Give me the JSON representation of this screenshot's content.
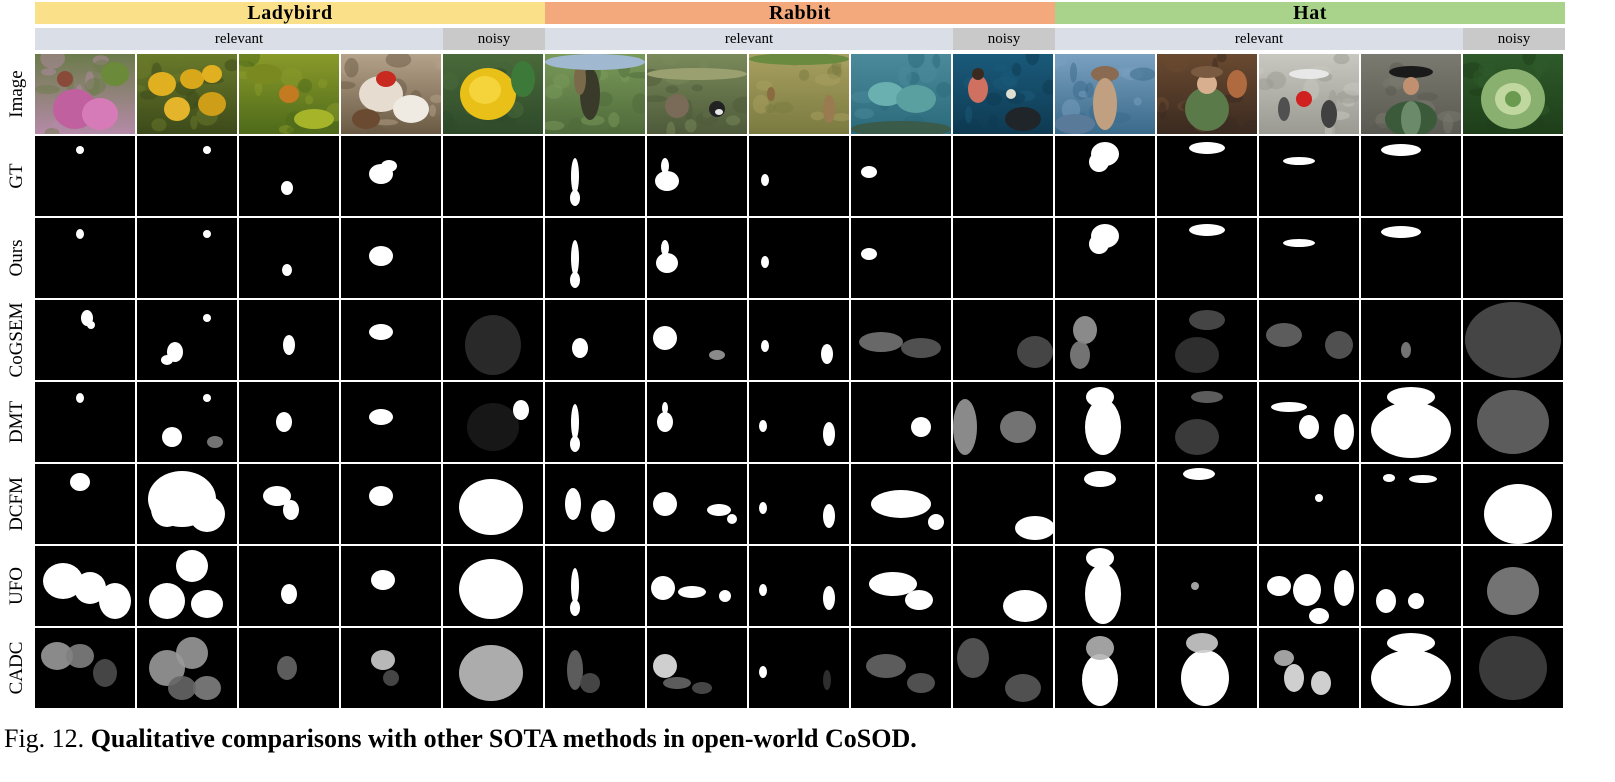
{
  "groups": [
    {
      "label": "Ladybird",
      "color": "#fbe08a"
    },
    {
      "label": "Rabbit",
      "color": "#f4a97c"
    },
    {
      "label": "Hat",
      "color": "#a9d38a"
    }
  ],
  "subheaders": {
    "relevant": "relevant",
    "noisy": "noisy"
  },
  "rows": [
    "Image",
    "GT",
    "Ours",
    "CoGSEM",
    "DMT",
    "DCFM",
    "UFO",
    "CADC"
  ],
  "columns": [
    {
      "group": "Ladybird",
      "type": "relevant",
      "depicts": "flower-ladybird"
    },
    {
      "group": "Ladybird",
      "type": "relevant",
      "depicts": "yellow-flowers-ladybird"
    },
    {
      "group": "Ladybird",
      "type": "relevant",
      "depicts": "ladybird-on-plant"
    },
    {
      "group": "Ladybird",
      "type": "relevant",
      "depicts": "thistle-ladybird"
    },
    {
      "group": "Ladybird",
      "type": "noisy",
      "depicts": "lemon"
    },
    {
      "group": "Rabbit",
      "type": "relevant",
      "depicts": "hunter-rabbit"
    },
    {
      "group": "Rabbit",
      "type": "relevant",
      "depicts": "rabbit-magpie"
    },
    {
      "group": "Rabbit",
      "type": "relevant",
      "depicts": "rabbit-field"
    },
    {
      "group": "Rabbit",
      "type": "relevant",
      "depicts": "rabbit-cattle"
    },
    {
      "group": "Rabbit",
      "type": "noisy",
      "depicts": "person-seal"
    },
    {
      "group": "Hat",
      "type": "relevant",
      "depicts": "cowboy-lake"
    },
    {
      "group": "Hat",
      "type": "relevant",
      "depicts": "woman-hat"
    },
    {
      "group": "Hat",
      "type": "relevant",
      "depicts": "runners"
    },
    {
      "group": "Hat",
      "type": "relevant",
      "depicts": "man-hat"
    },
    {
      "group": "Hat",
      "type": "noisy",
      "depicts": "cabbage"
    }
  ],
  "caption": {
    "prefix": "Fig. 12.",
    "text": "Qualitative comparisons with other SOTA methods in open-world CoSOD."
  }
}
